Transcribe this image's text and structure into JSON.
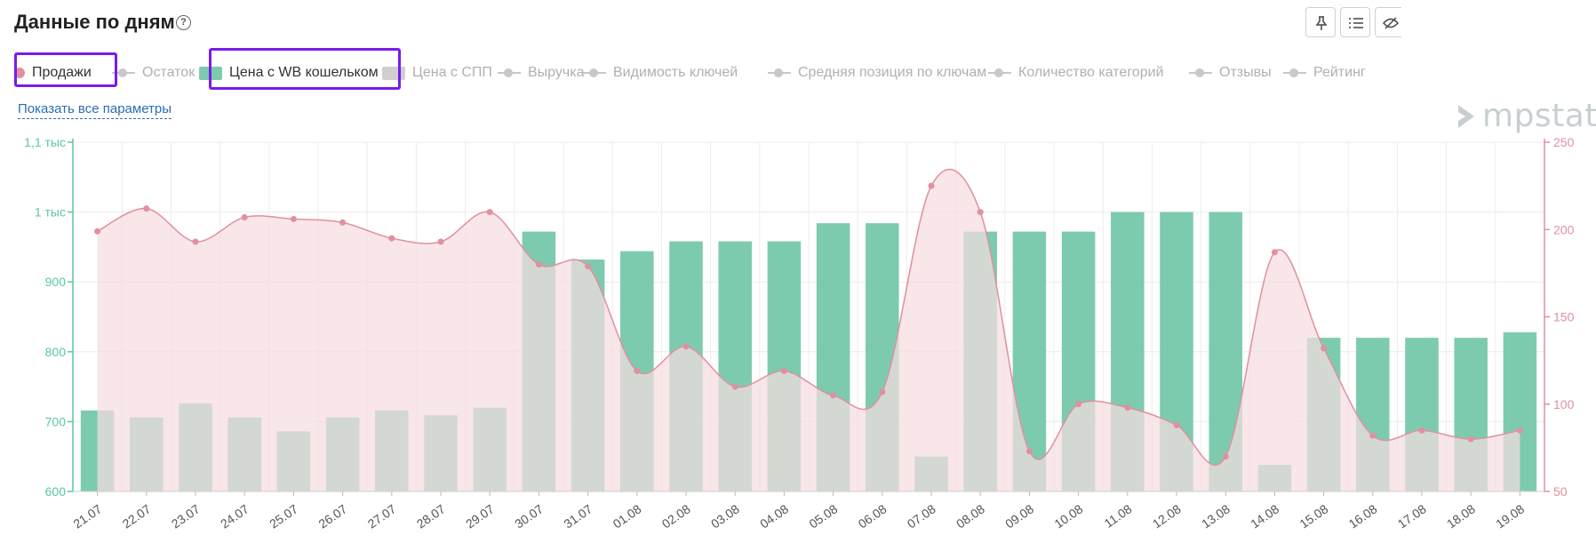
{
  "header": {
    "title": "Данные по дням",
    "help_icon": "question-circle-icon",
    "tools": [
      "pin-icon",
      "list-icon",
      "eye-off-icon"
    ]
  },
  "legend": [
    {
      "label": "Продажи",
      "marker": "dot",
      "active": true,
      "highlighted": true
    },
    {
      "label": "Остаток",
      "marker": "line",
      "active": false
    },
    {
      "label": "Цена с WB кошельком",
      "marker": "rect",
      "active": true,
      "highlighted": true
    },
    {
      "label": "Цена с СПП",
      "marker": "rect",
      "active": false
    },
    {
      "label": "Выручка",
      "marker": "line",
      "active": false
    },
    {
      "label": "Видимость ключей",
      "marker": "line",
      "active": false
    },
    {
      "label": "Средняя позиция по ключам",
      "marker": "line",
      "active": false
    },
    {
      "label": "Количество категорий",
      "marker": "line",
      "active": false
    },
    {
      "label": "Отзывы",
      "marker": "line",
      "active": false
    },
    {
      "label": "Рейтинг",
      "marker": "line",
      "active": false
    }
  ],
  "show_all_label": "Показать все параметры",
  "logo_text": "mpstats",
  "colors": {
    "bar": "#7dcbae",
    "area_fill": "#f5dde0",
    "line": "#e0909f",
    "left_axis": "#5cc79e",
    "right_axis": "#e0909f",
    "grid": "#ececec",
    "highlight": "#7a1be8"
  },
  "chart_data": {
    "type": "bar+area",
    "categories": [
      "21.07",
      "22.07",
      "23.07",
      "24.07",
      "25.07",
      "26.07",
      "27.07",
      "28.07",
      "29.07",
      "30.07",
      "31.07",
      "01.08",
      "02.08",
      "03.08",
      "04.08",
      "05.08",
      "06.08",
      "07.08",
      "08.08",
      "09.08",
      "10.08",
      "11.08",
      "12.08",
      "13.08",
      "14.08",
      "15.08",
      "16.08",
      "17.08",
      "18.08",
      "19.08"
    ],
    "series": [
      {
        "name": "Цена с WB кошельком",
        "type": "bar",
        "axis": "left",
        "values": [
          716,
          706,
          726,
          706,
          686,
          706,
          716,
          709,
          720,
          972,
          932,
          944,
          958,
          958,
          958,
          984,
          984,
          650,
          972,
          972,
          972,
          1000,
          1000,
          1000,
          638,
          820,
          820,
          820,
          820,
          828
        ]
      },
      {
        "name": "Продажи",
        "type": "area",
        "axis": "right",
        "values": [
          199,
          212,
          193,
          207,
          206,
          204,
          195,
          193,
          210,
          180,
          179,
          119,
          133,
          110,
          119,
          105,
          107,
          225,
          210,
          73,
          100,
          98,
          88,
          70,
          187,
          132,
          82,
          85,
          80,
          85
        ]
      }
    ],
    "left_axis": {
      "ticks": [
        600,
        700,
        800,
        900,
        1000,
        1100
      ],
      "tick_labels": [
        "600",
        "700",
        "800",
        "900",
        "1 тыс",
        "1,1 тыс"
      ],
      "range": [
        600,
        1100
      ]
    },
    "right_axis": {
      "ticks": [
        50,
        100,
        150,
        200,
        250
      ],
      "tick_labels": [
        "50",
        "100",
        "150",
        "200",
        "250"
      ],
      "range": [
        50,
        250
      ]
    },
    "grid": true
  }
}
